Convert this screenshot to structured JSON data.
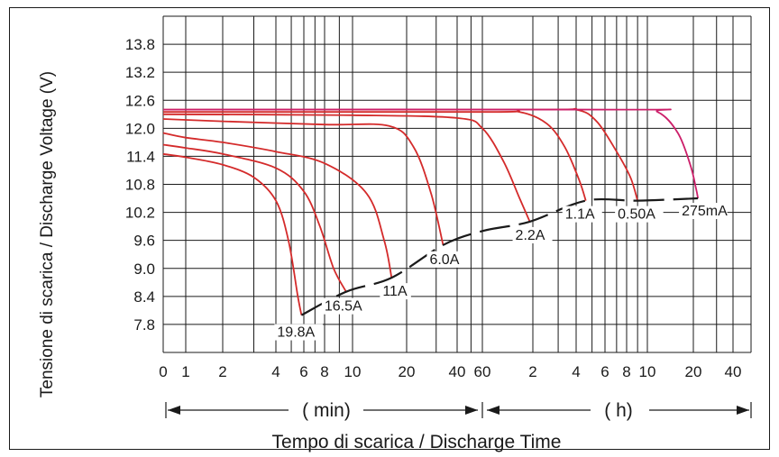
{
  "chart_data": {
    "type": "line",
    "title": "",
    "ylabel": "Tensione di scarica / Discharge Voltage (V)",
    "xlabel": "Tempo di scarica / Discharge Time",
    "y_ticks": [
      "7.8",
      "8.4",
      "9.0",
      "9.6",
      "10.2",
      "10.8",
      "11.4",
      "12.0",
      "12.6",
      "13.2",
      "13.8"
    ],
    "ylim": [
      7.2,
      14.4
    ],
    "x_tick_labels": [
      "0",
      "1",
      "2",
      "4",
      "6",
      "8",
      "10",
      "20",
      "40",
      "60",
      "2",
      "4",
      "6",
      "8",
      "10",
      "20",
      "40"
    ],
    "x_tick_minutes": [
      0.6,
      1,
      2,
      4,
      6,
      8,
      10,
      20,
      40,
      60,
      120,
      240,
      360,
      480,
      600,
      1200,
      2400
    ],
    "xlim_minutes": [
      0.6,
      3000
    ],
    "x_scale": "log",
    "unit_labels": {
      "minutes": "( min)",
      "hours": "( h)"
    },
    "grid": true,
    "series": [
      {
        "name": "19.8A",
        "label": "19.8A",
        "points": [
          [
            0.6,
            11.45
          ],
          [
            1,
            11.38
          ],
          [
            2,
            11.22
          ],
          [
            3,
            10.95
          ],
          [
            4,
            10.45
          ],
          [
            4.8,
            9.6
          ],
          [
            5.5,
            8.4
          ],
          [
            5.8,
            8.0
          ]
        ]
      },
      {
        "name": "16.5A",
        "label": "16.5A",
        "points": [
          [
            0.6,
            11.65
          ],
          [
            1,
            11.58
          ],
          [
            2,
            11.45
          ],
          [
            4,
            11.15
          ],
          [
            6,
            10.65
          ],
          [
            7.5,
            9.9
          ],
          [
            8.6,
            9.0
          ],
          [
            9.5,
            8.5
          ]
        ]
      },
      {
        "name": "11A",
        "label": "11A",
        "points": [
          [
            0.6,
            11.9
          ],
          [
            1,
            11.8
          ],
          [
            2,
            11.7
          ],
          [
            4,
            11.5
          ],
          [
            8,
            11.25
          ],
          [
            12,
            10.6
          ],
          [
            15,
            9.6
          ],
          [
            16.5,
            8.8
          ]
        ]
      },
      {
        "name": "6.0A",
        "label": "6.0A",
        "points": [
          [
            0.6,
            12.2
          ],
          [
            2,
            12.15
          ],
          [
            8,
            12.08
          ],
          [
            16,
            12.05
          ],
          [
            22,
            11.6
          ],
          [
            28,
            10.6
          ],
          [
            33,
            9.5
          ]
        ]
      },
      {
        "name": "2.2A",
        "label": "2.2A",
        "points": [
          [
            0.6,
            12.3
          ],
          [
            10,
            12.28
          ],
          [
            40,
            12.22
          ],
          [
            60,
            12.0
          ],
          [
            80,
            11.3
          ],
          [
            100,
            10.5
          ],
          [
            115,
            10.0
          ]
        ]
      },
      {
        "name": "1.1A",
        "label": "1.1A",
        "points": [
          [
            0.6,
            12.35
          ],
          [
            60,
            12.35
          ],
          [
            100,
            12.35
          ],
          [
            150,
            12.1
          ],
          [
            200,
            11.6
          ],
          [
            250,
            10.9
          ],
          [
            275,
            10.45
          ]
        ]
      },
      {
        "name": "0.50A",
        "label": "0.50A",
        "points": [
          [
            0.6,
            12.4
          ],
          [
            120,
            12.4
          ],
          [
            240,
            12.4
          ],
          [
            320,
            12.15
          ],
          [
            420,
            11.5
          ],
          [
            500,
            10.95
          ],
          [
            540,
            10.45
          ]
        ]
      },
      {
        "name": "275mA",
        "label": "275mA",
        "points": [
          [
            0.6,
            12.4
          ],
          [
            480,
            12.4
          ],
          [
            700,
            12.35
          ],
          [
            950,
            11.9
          ],
          [
            1150,
            11.2
          ],
          [
            1260,
            10.7
          ],
          [
            1300,
            10.5
          ]
        ]
      }
    ],
    "endpoint_curve": [
      [
        5.8,
        8.0
      ],
      [
        9.5,
        8.5
      ],
      [
        16.5,
        8.8
      ],
      [
        33,
        9.5
      ],
      [
        60,
        9.8
      ],
      [
        115,
        10.0
      ],
      [
        275,
        10.45
      ],
      [
        540,
        10.45
      ],
      [
        1300,
        10.5
      ]
    ],
    "colors": {
      "curve": "#d42b2b",
      "curve_last": "#cc1f6a",
      "endpoint": "#1a1a1a",
      "grid": "#1a1a1a"
    }
  }
}
